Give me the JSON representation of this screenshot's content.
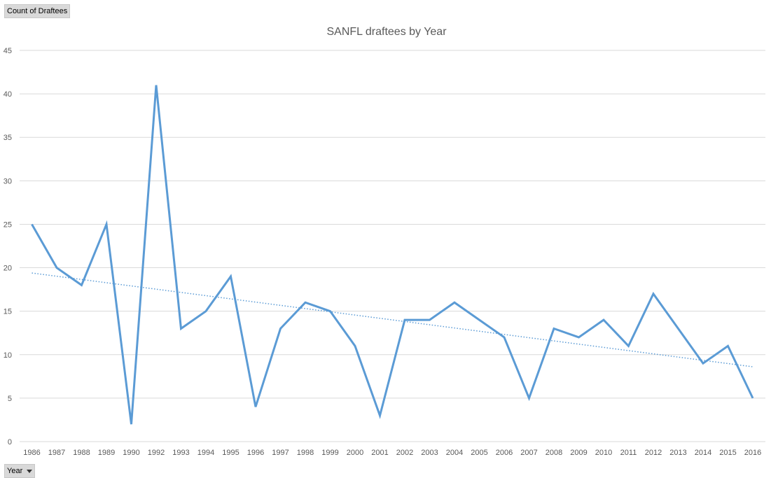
{
  "pivot": {
    "value_field": "Count of Draftees",
    "axis_field": "Year"
  },
  "chart_data": {
    "type": "line",
    "title": "SANFL draftees by Year",
    "xlabel": "",
    "ylabel": "",
    "categories": [
      "1986",
      "1987",
      "1988",
      "1989",
      "1990",
      "1992",
      "1993",
      "1994",
      "1995",
      "1996",
      "1997",
      "1998",
      "1999",
      "2000",
      "2001",
      "2002",
      "2003",
      "2004",
      "2005",
      "2006",
      "2007",
      "2008",
      "2009",
      "2010",
      "2011",
      "2012",
      "2013",
      "2014",
      "2015",
      "2016"
    ],
    "series": [
      {
        "values": [
          25,
          20,
          18,
          25,
          2,
          41,
          13,
          15,
          19,
          4,
          13,
          16,
          15,
          11,
          3,
          14,
          14,
          16,
          14,
          12,
          5,
          13,
          12,
          14,
          11,
          17,
          13,
          9,
          11,
          5
        ],
        "color": "#5b9bd5",
        "trendline": "linear"
      }
    ],
    "ylim": [
      0,
      45
    ],
    "yticks": [
      0,
      5,
      10,
      15,
      20,
      25,
      30,
      35,
      40,
      45
    ],
    "grid": true,
    "legend": "none"
  }
}
